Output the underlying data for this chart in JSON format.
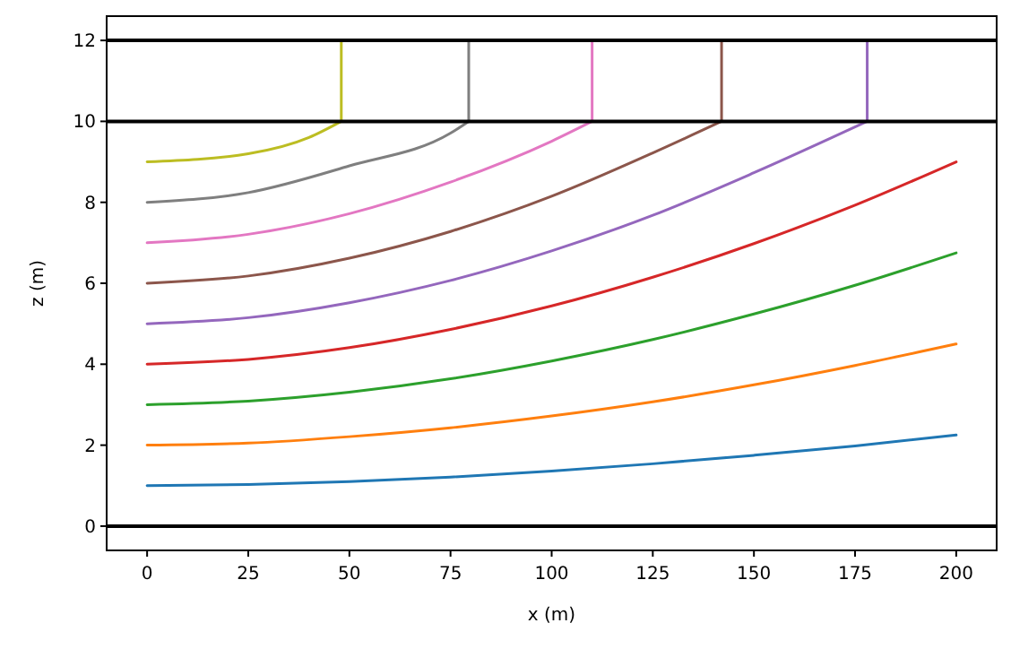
{
  "chart_data": {
    "type": "line",
    "xlabel": "x (m)",
    "ylabel": "z (m)",
    "xlim": [
      -10,
      210
    ],
    "ylim": [
      -0.6,
      12.6
    ],
    "xticks": [
      0,
      25,
      50,
      75,
      100,
      125,
      150,
      175,
      200
    ],
    "yticks": [
      0,
      2,
      4,
      6,
      8,
      10,
      12
    ],
    "grid": false,
    "ref_lines": [
      {
        "axis": "y",
        "value": 0,
        "color": "#000000"
      },
      {
        "axis": "y",
        "value": 10,
        "color": "#000000"
      },
      {
        "axis": "y",
        "value": 12,
        "color": "#000000"
      }
    ],
    "series": [
      {
        "color": "#1f77b4",
        "x": [
          0,
          25,
          50,
          75,
          100,
          125,
          150,
          175,
          200
        ],
        "values": [
          1,
          1.03,
          1.1,
          1.21,
          1.36,
          1.54,
          1.75,
          1.98,
          2.25
        ]
      },
      {
        "color": "#ff7f0e",
        "x": [
          0,
          25,
          50,
          75,
          100,
          125,
          150,
          175,
          200
        ],
        "values": [
          2,
          2.05,
          2.21,
          2.43,
          2.72,
          3.07,
          3.49,
          3.97,
          4.5
        ]
      },
      {
        "color": "#2ca02c",
        "x": [
          0,
          25,
          50,
          75,
          100,
          125,
          150,
          175,
          200
        ],
        "values": [
          3,
          3.09,
          3.31,
          3.64,
          4.08,
          4.61,
          5.24,
          5.95,
          6.75
        ]
      },
      {
        "color": "#d62728",
        "x": [
          0,
          25,
          50,
          75,
          100,
          125,
          150,
          175,
          200
        ],
        "values": [
          4,
          4.12,
          4.41,
          4.86,
          5.44,
          6.15,
          6.98,
          7.93,
          9
        ]
      },
      {
        "color": "#9467bd",
        "x": [
          0,
          25,
          50,
          75,
          100,
          125,
          150,
          178,
          178
        ],
        "values": [
          5,
          5.15,
          5.52,
          6.07,
          6.8,
          7.68,
          8.73,
          10,
          12
        ]
      },
      {
        "color": "#8c564b",
        "x": [
          0,
          25,
          50,
          75,
          100,
          125,
          142,
          142
        ],
        "values": [
          6,
          6.18,
          6.62,
          7.28,
          8.15,
          9.22,
          10,
          12
        ]
      },
      {
        "color": "#e377c2",
        "x": [
          0,
          25,
          50,
          75,
          100,
          110,
          110
        ],
        "values": [
          7,
          7.21,
          7.72,
          8.5,
          9.51,
          10,
          12
        ]
      },
      {
        "color": "#7f7f7f",
        "x": [
          0,
          25,
          50,
          75,
          79.5,
          79.5
        ],
        "values": [
          8,
          8.24,
          8.9,
          9.71,
          10,
          12
        ]
      },
      {
        "color": "#bcbd22",
        "x": [
          0,
          25,
          40,
          48,
          48
        ],
        "values": [
          9,
          9.2,
          9.6,
          10,
          12
        ]
      }
    ]
  }
}
